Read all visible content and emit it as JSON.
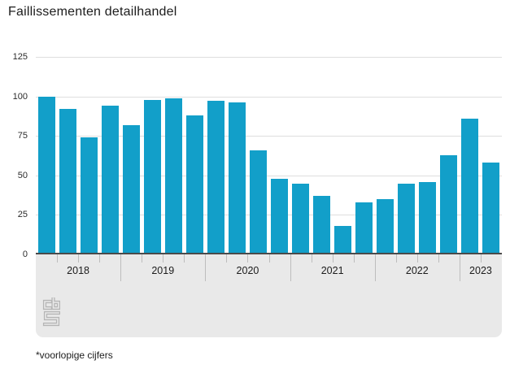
{
  "title": "Faillissementen detailhandel",
  "footnote": "*voorlopige cijfers",
  "colors": {
    "bar": "#129fc9",
    "grid": "#dedede",
    "band": "#e9e9e9",
    "baseline": "#4a4a4a",
    "tick": "#bdbdbd",
    "logo": "#b5b5b5",
    "text": "#1c1c1c"
  },
  "logo_name": "cbs-logo",
  "chart_data": {
    "type": "bar",
    "title": "Faillissementen detailhandel",
    "xlabel": "",
    "ylabel": "",
    "ylim": [
      0,
      125
    ],
    "y_ticks": [
      0,
      25,
      50,
      75,
      100,
      125
    ],
    "grid": true,
    "legend": false,
    "bar_color": "#129fc9",
    "categories_note": "quarterly values grouped per year",
    "groups": [
      {
        "year": "2018",
        "values": [
          100,
          92,
          74,
          94
        ]
      },
      {
        "year": "2019",
        "values": [
          82,
          98,
          99,
          88
        ]
      },
      {
        "year": "2020",
        "values": [
          97,
          96,
          66,
          48
        ]
      },
      {
        "year": "2021",
        "values": [
          45,
          37,
          18,
          33
        ]
      },
      {
        "year": "2022",
        "values": [
          35,
          45,
          46,
          63
        ]
      },
      {
        "year": "2023",
        "values": [
          86,
          58
        ]
      }
    ]
  }
}
